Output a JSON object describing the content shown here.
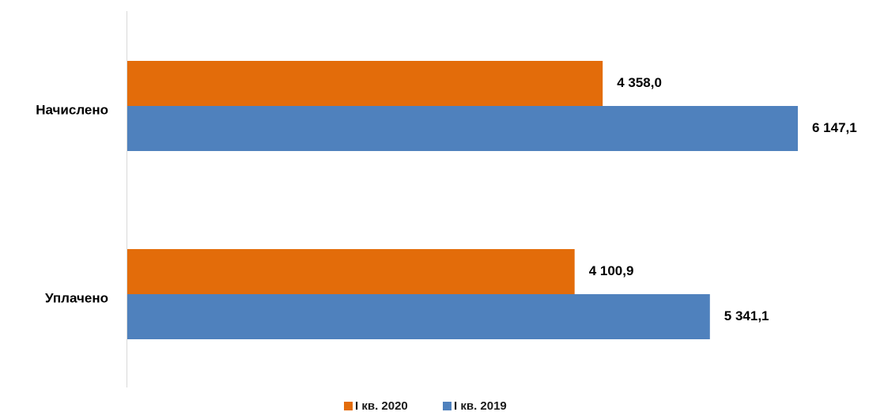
{
  "chart_data": {
    "type": "bar",
    "orientation": "horizontal",
    "categories": [
      "Начислено",
      "Уплачено"
    ],
    "series": [
      {
        "name": "I кв. 2020",
        "color": "#E36C0A",
        "values": [
          4358.0,
          4100.9
        ],
        "labels": [
          "4 358,0",
          "4 100,9"
        ]
      },
      {
        "name": "I кв. 2019",
        "color": "#4F81BD",
        "values": [
          6147.1,
          5341.1
        ],
        "labels": [
          "6 147,1",
          "5 341,1"
        ]
      }
    ],
    "title": "",
    "xlabel": "",
    "ylabel": "",
    "xlim": [
      0,
      6147.1
    ],
    "grid": false,
    "legend_position": "bottom"
  }
}
